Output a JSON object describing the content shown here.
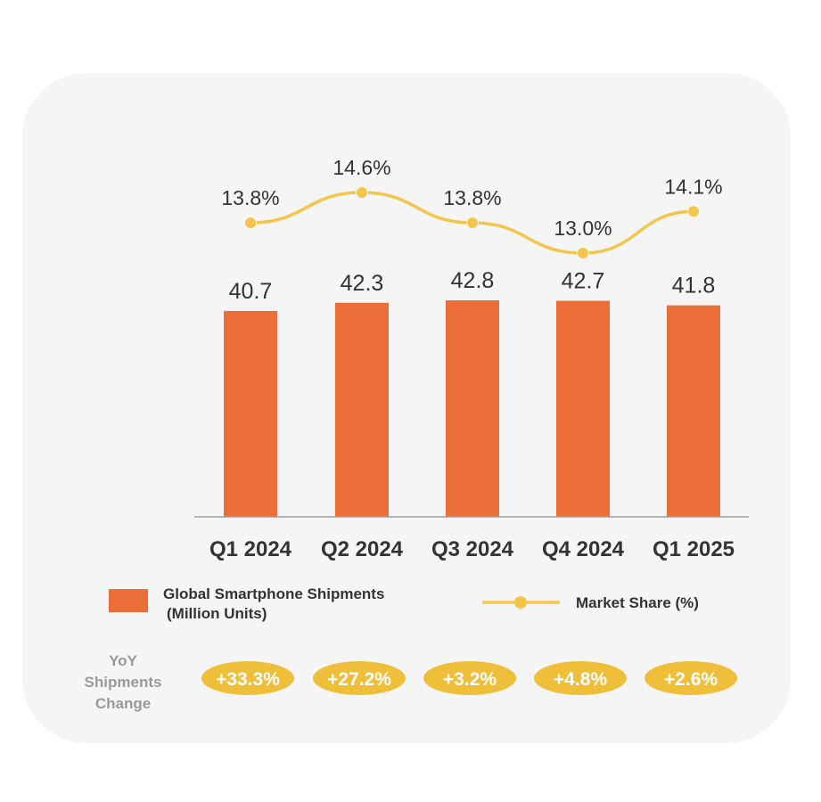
{
  "colors": {
    "bar": "#ec6f3a",
    "line": "#f3c64b",
    "pill": "#f0bf3a",
    "text": "#333333",
    "muted": "#9a9a9a"
  },
  "chart_data": {
    "type": "bar",
    "categories": [
      "Q1 2024",
      "Q2 2024",
      "Q3 2024",
      "Q4 2024",
      "Q1 2025"
    ],
    "series": [
      {
        "name": "Global Smartphone Shipments (Million Units)",
        "type": "bar",
        "values": [
          40.7,
          42.3,
          42.8,
          42.7,
          41.8
        ],
        "labels": [
          "40.7",
          "42.3",
          "42.8",
          "42.7",
          "41.8"
        ]
      },
      {
        "name": "Market Share (%)",
        "type": "line",
        "values": [
          13.8,
          14.6,
          13.8,
          13.0,
          14.1
        ],
        "labels": [
          "13.8%",
          "14.6%",
          "13.8%",
          "13.0%",
          "14.1%"
        ]
      }
    ],
    "legend": {
      "bar_line1": "Global Smartphone Shipments",
      "bar_line2": "(Million Units)",
      "line": "Market Share (%)",
      "position": "bottom"
    },
    "yoy": {
      "title_lines": [
        "YoY",
        "Shipments",
        "Change"
      ],
      "values": [
        "+33.3%",
        "+27.2%",
        "+3.2%",
        "+4.8%",
        "+2.6%"
      ]
    }
  }
}
